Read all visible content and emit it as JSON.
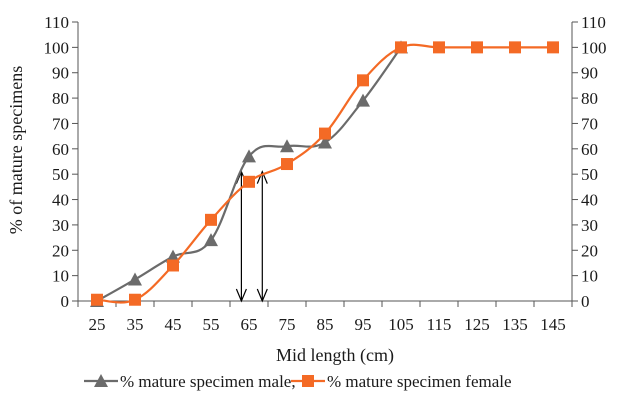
{
  "chart_data": {
    "type": "line",
    "xlabel": "Mid length (cm)",
    "ylabel": "% of mature specimens",
    "categories": [
      "25",
      "35",
      "45",
      "55",
      "65",
      "75",
      "85",
      "95",
      "105",
      "115",
      "125",
      "135",
      "145"
    ],
    "y_ticks": [
      "0",
      "10",
      "20",
      "30",
      "40",
      "50",
      "60",
      "70",
      "80",
      "90",
      "100",
      "110"
    ],
    "ylim": [
      0,
      110
    ],
    "secondary_y_axis": true,
    "grid": false,
    "legend_position": "bottom",
    "series": [
      {
        "name": "% mature specimen male,",
        "marker": "triangle",
        "color": "#6b6b6b",
        "values": [
          0,
          8.5,
          17.5,
          24,
          57,
          61,
          62.5,
          79,
          100,
          null,
          null,
          null,
          null
        ]
      },
      {
        "name": "% mature specimen female",
        "marker": "square",
        "color": "#f46a25",
        "values": [
          0.5,
          0.5,
          14,
          32,
          47,
          54,
          66,
          87,
          100,
          100,
          100,
          100,
          100
        ]
      }
    ],
    "annotations": [
      {
        "type": "double-arrow",
        "x": 63,
        "y_from": 0,
        "y_to": 51
      },
      {
        "type": "double-arrow",
        "x": 68.5,
        "y_from": 0,
        "y_to": 51
      }
    ]
  }
}
